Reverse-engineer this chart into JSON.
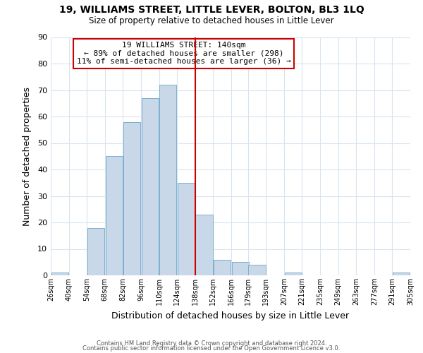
{
  "title": "19, WILLIAMS STREET, LITTLE LEVER, BOLTON, BL3 1LQ",
  "subtitle": "Size of property relative to detached houses in Little Lever",
  "xlabel": "Distribution of detached houses by size in Little Lever",
  "ylabel": "Number of detached properties",
  "footer_line1": "Contains HM Land Registry data © Crown copyright and database right 2024.",
  "footer_line2": "Contains public sector information licensed under the Open Government Licence v3.0.",
  "bin_edges": [
    26,
    40,
    54,
    68,
    82,
    96,
    110,
    124,
    138,
    152,
    166,
    179,
    193,
    207,
    221,
    235,
    249,
    263,
    277,
    291,
    305
  ],
  "bar_heights": [
    1,
    0,
    18,
    45,
    58,
    67,
    72,
    35,
    23,
    6,
    5,
    4,
    0,
    1,
    0,
    0,
    0,
    0,
    0,
    1
  ],
  "bar_color": "#c8d8e8",
  "bar_edgecolor": "#7ab0d0",
  "vline_x": 138,
  "vline_color": "#cc0000",
  "annotation_title": "19 WILLIAMS STREET: 140sqm",
  "annotation_line1": "← 89% of detached houses are smaller (298)",
  "annotation_line2": "11% of semi-detached houses are larger (36) →",
  "annotation_box_edgecolor": "#cc0000",
  "annotation_box_facecolor": "#ffffff",
  "ylim": [
    0,
    90
  ],
  "yticks": [
    0,
    10,
    20,
    30,
    40,
    50,
    60,
    70,
    80,
    90
  ],
  "tick_labels": [
    "26sqm",
    "40sqm",
    "54sqm",
    "68sqm",
    "82sqm",
    "96sqm",
    "110sqm",
    "124sqm",
    "138sqm",
    "152sqm",
    "166sqm",
    "179sqm",
    "193sqm",
    "207sqm",
    "221sqm",
    "235sqm",
    "249sqm",
    "263sqm",
    "277sqm",
    "291sqm",
    "305sqm"
  ],
  "background_color": "#ffffff",
  "grid_color": "#d8e4f0"
}
